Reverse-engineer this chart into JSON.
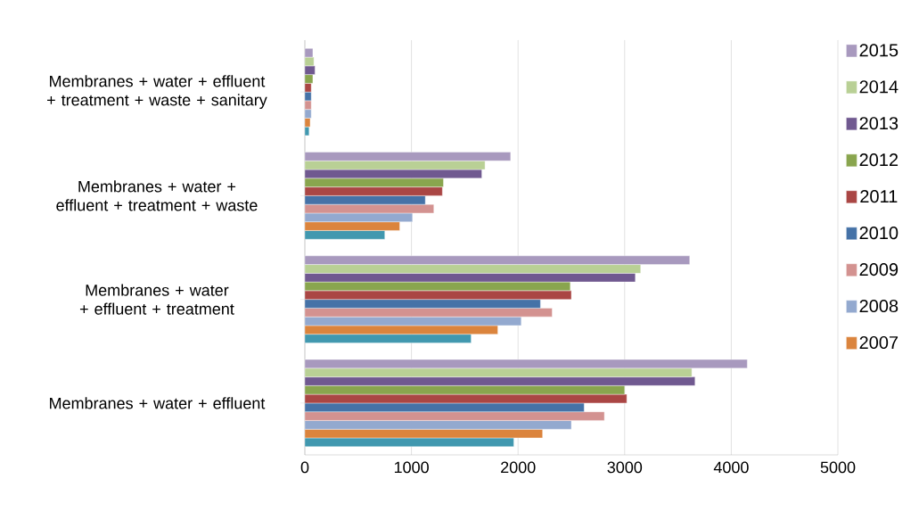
{
  "chart_data": {
    "type": "bar",
    "orientation": "horizontal",
    "categories": [
      "Membranes + water + effluent + treatment + waste + sanitary",
      "Membranes + water + effluent + treatment + waste",
      "Membranes + water + effluent + treatment",
      "Membranes + water + effluent"
    ],
    "series": [
      {
        "color": "#4198af",
        "values": [
          40,
          750,
          1560,
          1960
        ]
      },
      {
        "name": "2007",
        "color": "#db843d",
        "values": [
          50,
          890,
          1810,
          2230
        ]
      },
      {
        "name": "2008",
        "color": "#93a9cf",
        "values": [
          60,
          1010,
          2030,
          2500
        ]
      },
      {
        "name": "2009",
        "color": "#d39290",
        "values": [
          60,
          1210,
          2320,
          2810
        ]
      },
      {
        "name": "2010",
        "color": "#4572a7",
        "values": [
          60,
          1130,
          2210,
          2620
        ]
      },
      {
        "name": "2011",
        "color": "#aa4644",
        "values": [
          60,
          1290,
          2500,
          3020
        ]
      },
      {
        "name": "2012",
        "color": "#89a54e",
        "values": [
          75,
          1300,
          2490,
          3000
        ]
      },
      {
        "name": "2013",
        "color": "#705990",
        "values": [
          95,
          1660,
          3100,
          3660
        ]
      },
      {
        "name": "2014",
        "color": "#b9d095",
        "values": [
          85,
          1690,
          3150,
          3630
        ]
      },
      {
        "name": "2015",
        "color": "#a899be",
        "values": [
          75,
          1930,
          3610,
          4150
        ]
      }
    ],
    "xlim": [
      0,
      5000
    ],
    "xticks": [
      0,
      1000,
      2000,
      3000,
      4000,
      5000
    ],
    "grid": "x",
    "legend": "right"
  }
}
